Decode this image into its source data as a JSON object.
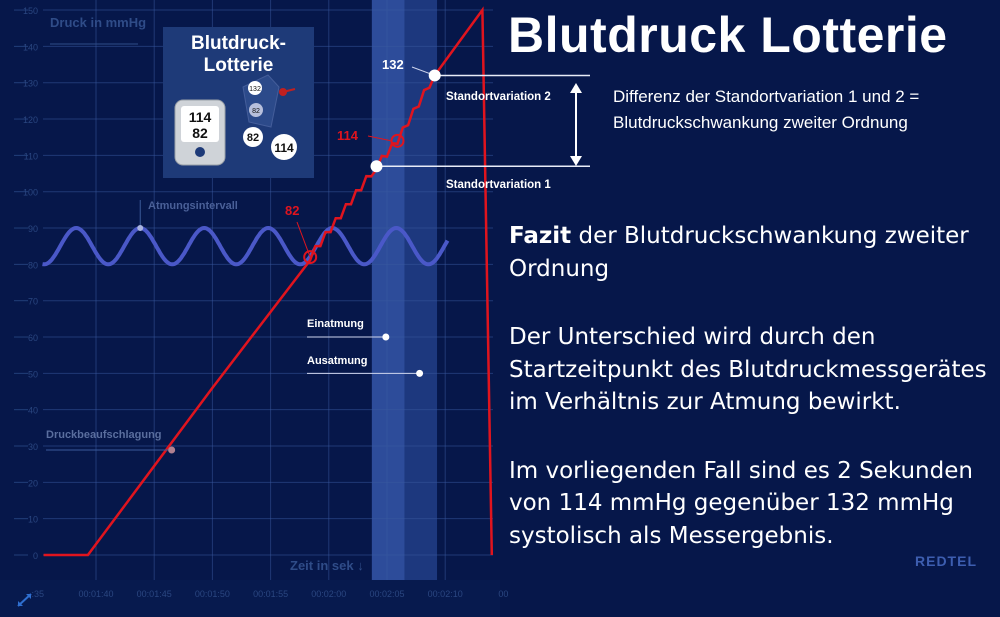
{
  "title": "Blutdruck Lotterie",
  "logo": {
    "title": "Blutdruck-\nLotterie",
    "display_systolic": "114",
    "display_diastolic": "82",
    "balls": [
      "132",
      "82",
      "82",
      "114"
    ]
  },
  "difference_note": "Differenz der Standortvariation 1 und 2  = Blutdruckschwankung zweiter Ordnung",
  "fazit": {
    "heading_bold": "Fazit",
    "heading_rest": " der Blutdruckschwankung zweiter Ordnung",
    "paragraph1": "Der Unterschied wird durch den Startzeitpunkt des Blutdruckmessgerätes im Verhältnis zur Atmung bewirkt.",
    "paragraph2": "Im vorliegenden Fall sind es 2 Sekunden von 114 mmHg gegenüber 132 mmHg systolisch als Messergebnis."
  },
  "watermark": "REDTEL",
  "colors": {
    "background": "#06174a",
    "pressure_line": "#e0141e",
    "breathing_wave": "#4a58c8",
    "highlight_band": "#2a4a9a",
    "grid": "#3a5aa0"
  },
  "chart_data": {
    "type": "line",
    "ylabel": "Druck in mmHg",
    "xlabel": "Zeit in sek ↓",
    "ylim": [
      0,
      150
    ],
    "yticks": [
      0,
      10,
      20,
      30,
      40,
      50,
      60,
      70,
      80,
      90,
      100,
      110,
      120,
      130,
      140,
      150
    ],
    "xticks": [
      {
        "t": 95,
        "label": ":35"
      },
      {
        "t": 100,
        "label": "00:01:40"
      },
      {
        "t": 105,
        "label": "00:01:45"
      },
      {
        "t": 110,
        "label": "00:01:50"
      },
      {
        "t": 115,
        "label": "00:01:55"
      },
      {
        "t": 120,
        "label": "00:02:00"
      },
      {
        "t": 125,
        "label": "00:02:05"
      },
      {
        "t": 130,
        "label": "00:02:10"
      },
      {
        "t": 135,
        "label": "00"
      }
    ],
    "grid": true,
    "pressure_curve": [
      [
        95.5,
        0
      ],
      [
        99.3,
        0
      ],
      [
        110,
        46
      ],
      [
        118.4,
        82
      ],
      [
        124.1,
        107
      ],
      [
        125.9,
        114
      ],
      [
        129.1,
        132
      ],
      [
        133.2,
        150
      ],
      [
        134.0,
        0
      ]
    ],
    "breathing_wave": {
      "min": 80,
      "max": 90,
      "period_s": 5.5,
      "first_peak_t": 103.8,
      "t_start": 95.4,
      "t_end": 130.2
    },
    "highlight_band": {
      "t_start": 123.7,
      "t_end": 129.3,
      "inner_t_end": 126.5
    },
    "annotations": {
      "breathing_interval": {
        "label": "Atmungsintervall",
        "t": 103.8,
        "v": 90
      },
      "inhale": {
        "label": "Einatmung",
        "t": 124.9,
        "v": 60
      },
      "exhale": {
        "label": "Ausatmung",
        "t": 127.8,
        "v": 50
      },
      "pressurization": {
        "label": "Druckbeaufschlagung",
        "t": 106.5,
        "v": 29
      },
      "marker_82": {
        "label": "82",
        "t": 118.4,
        "v": 82
      },
      "marker_114": {
        "label": "114",
        "t": 125.9,
        "v": 114
      },
      "marker_132": {
        "label": "132",
        "t": 129.1,
        "v": 132
      },
      "site_variation_1": {
        "label": "Standortvariation 1",
        "t": 124.1,
        "v": 107
      },
      "site_variation_2": {
        "label": "Standortvariation 2",
        "t": 129.1,
        "v": 132
      }
    }
  }
}
